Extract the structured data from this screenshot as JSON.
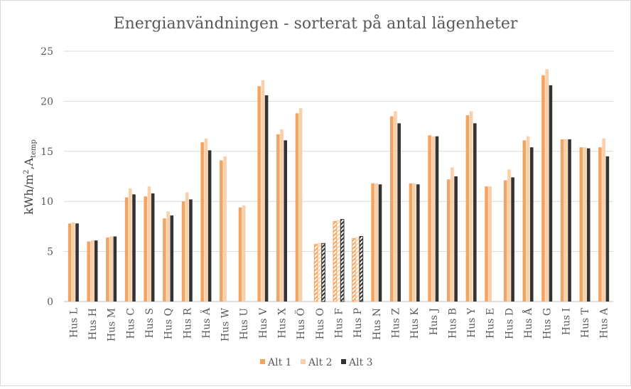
{
  "chart_data": {
    "type": "bar",
    "title": "Energianvändningen - sorterat på antal lägenheter",
    "ylabel_main": "kWh/m",
    "ylabel_sup": "2",
    "ylabel_mid": ",A",
    "ylabel_sub": "temp",
    "ylim": [
      0,
      25
    ],
    "yticks": [
      0,
      5,
      10,
      15,
      20,
      25
    ],
    "grid": true,
    "legend_position": "bottom",
    "categories": [
      "Hus L",
      "Hus H",
      "Hus M",
      "Hus C",
      "Hus S",
      "Hus Q",
      "Hus R",
      "Hus Ä",
      "Hus W",
      "Hus U",
      "Hus V",
      "Hus X",
      "Hus Ö",
      "Hus O",
      "Hus F",
      "Hus P",
      "Hus N",
      "Hus Z",
      "Hus K",
      "Hus J",
      "Hus B",
      "Hus Y",
      "Hus E",
      "Hus D",
      "Hus Å",
      "Hus G",
      "Hus I",
      "Hus T",
      "Hus A"
    ],
    "hatched_categories": [
      "Hus O",
      "Hus F",
      "Hus P"
    ],
    "series": [
      {
        "name": "Alt 1",
        "color": "#f4a460",
        "values": [
          7.8,
          6.0,
          6.4,
          10.4,
          10.5,
          8.3,
          10.0,
          15.9,
          14.1,
          9.4,
          21.5,
          16.7,
          18.8,
          5.7,
          8.0,
          6.3,
          11.8,
          18.5,
          11.8,
          16.6,
          12.2,
          18.6,
          11.5,
          12.1,
          16.1,
          22.6,
          16.2,
          15.4,
          15.4
        ]
      },
      {
        "name": "Alt 2",
        "color": "#fbd0a8",
        "values": [
          7.9,
          6.1,
          6.5,
          11.3,
          11.5,
          9.0,
          10.9,
          16.3,
          14.5,
          9.6,
          22.1,
          17.2,
          19.3,
          5.8,
          8.1,
          6.4,
          11.8,
          19.0,
          11.8,
          16.5,
          13.4,
          19.0,
          11.5,
          13.2,
          16.5,
          23.2,
          16.2,
          15.4,
          16.3
        ]
      },
      {
        "name": "Alt 3",
        "color": "#333333",
        "values": [
          7.8,
          6.1,
          6.5,
          10.7,
          10.8,
          8.6,
          10.2,
          15.1,
          null,
          null,
          20.6,
          16.1,
          null,
          5.8,
          8.2,
          6.5,
          11.7,
          17.8,
          11.7,
          16.5,
          12.5,
          17.8,
          null,
          12.4,
          15.4,
          21.6,
          16.2,
          15.3,
          14.5
        ]
      }
    ]
  }
}
